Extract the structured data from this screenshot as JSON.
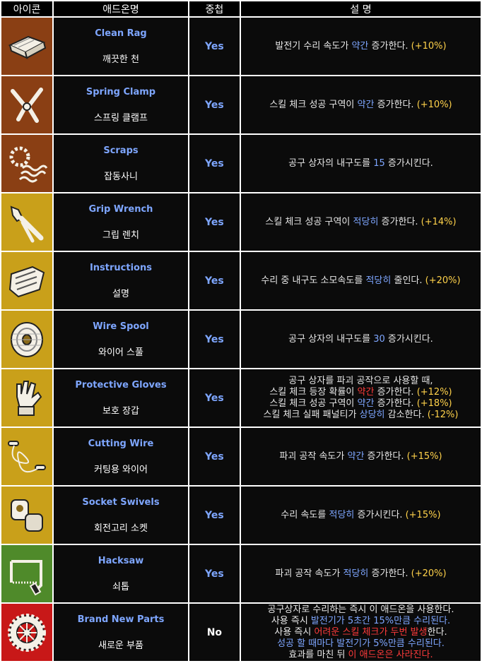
{
  "headers": [
    "아이콘",
    "애드온명",
    "중첩",
    "설 명"
  ],
  "colors": {
    "brown": "#8a3f14",
    "gold": "#c9a01a",
    "green": "#4f8a2a",
    "red": "#c81818",
    "blue_text": "#7ea6ff",
    "red_text": "#ff3b3b",
    "gold_text": "#ffd24a"
  },
  "rows": [
    {
      "icon": "clean-rag-icon",
      "bg": "brown",
      "en": "Clean Rag",
      "ko": "깨끗한 천",
      "stack": "Yes",
      "lines": [
        [
          [
            "text",
            "발전기 수리 속도가 "
          ],
          [
            "blue",
            "약간"
          ],
          [
            "text",
            " 증가한다. "
          ],
          [
            "gold",
            "(+10%)"
          ]
        ]
      ]
    },
    {
      "icon": "spring-clamp-icon",
      "bg": "brown",
      "en": "Spring Clamp",
      "ko": "스프링 클램프",
      "stack": "Yes",
      "lines": [
        [
          [
            "text",
            "스킬 체크 성공 구역이 "
          ],
          [
            "blue",
            "약간"
          ],
          [
            "text",
            " 증가한다. "
          ],
          [
            "gold",
            "(+10%)"
          ]
        ]
      ]
    },
    {
      "icon": "scraps-icon",
      "bg": "brown",
      "en": "Scraps",
      "ko": "잡동사니",
      "stack": "Yes",
      "lines": [
        [
          [
            "text",
            "공구 상자의 내구도를 "
          ],
          [
            "blue",
            "15"
          ],
          [
            "text",
            " 증가시킨다."
          ]
        ]
      ]
    },
    {
      "icon": "grip-wrench-icon",
      "bg": "gold",
      "en": "Grip Wrench",
      "ko": "그립 렌치",
      "stack": "Yes",
      "lines": [
        [
          [
            "text",
            "스킬 체크 성공 구역이 "
          ],
          [
            "blue",
            "적당히"
          ],
          [
            "text",
            " 증가한다. "
          ],
          [
            "gold",
            "(+14%)"
          ]
        ]
      ]
    },
    {
      "icon": "instructions-icon",
      "bg": "gold",
      "en": "Instructions",
      "ko": "설명",
      "stack": "Yes",
      "lines": [
        [
          [
            "text",
            "수리 중 내구도 소모속도를 "
          ],
          [
            "blue",
            "적당히"
          ],
          [
            "text",
            " 줄인다. "
          ],
          [
            "gold",
            "(+20%)"
          ]
        ]
      ]
    },
    {
      "icon": "wire-spool-icon",
      "bg": "gold",
      "en": "Wire Spool",
      "ko": "와이어 스풀",
      "stack": "Yes",
      "lines": [
        [
          [
            "text",
            "공구 상자의 내구도를 "
          ],
          [
            "blue",
            "30"
          ],
          [
            "text",
            " 증가시킨다."
          ]
        ]
      ]
    },
    {
      "icon": "protective-gloves-icon",
      "bg": "gold",
      "en": "Protective Gloves",
      "ko": "보호 장갑",
      "stack": "Yes",
      "lines": [
        [
          [
            "text",
            "공구 상자를 파괴 공작으로 사용할 때,"
          ]
        ],
        [
          [
            "text",
            "스킬 체크 등장 확률이 "
          ],
          [
            "red",
            "약간"
          ],
          [
            "text",
            " 증가한다. "
          ],
          [
            "gold",
            "(+12%)"
          ]
        ],
        [
          [
            "text",
            "스킬 체크 성공 구역이 "
          ],
          [
            "blue",
            "약간"
          ],
          [
            "text",
            " 증가한다. "
          ],
          [
            "gold",
            "(+18%)"
          ]
        ],
        [
          [
            "text",
            "스킬 체크 실패 패널티가 "
          ],
          [
            "blue",
            "상당히"
          ],
          [
            "text",
            " 감소한다. "
          ],
          [
            "gold",
            "(-12%)"
          ]
        ]
      ]
    },
    {
      "icon": "cutting-wire-icon",
      "bg": "gold",
      "en": "Cutting Wire",
      "ko": "커팅용 와이어",
      "stack": "Yes",
      "lines": [
        [
          [
            "text",
            "파괴 공작 속도가 "
          ],
          [
            "blue",
            "약간"
          ],
          [
            "text",
            " 증가한다. "
          ],
          [
            "gold",
            "(+15%)"
          ]
        ]
      ]
    },
    {
      "icon": "socket-swivels-icon",
      "bg": "gold",
      "en": "Socket Swivels",
      "ko": "회전고리 소켓",
      "stack": "Yes",
      "lines": [
        [
          [
            "text",
            "수리 속도를 "
          ],
          [
            "blue",
            "적당히"
          ],
          [
            "text",
            " 증가시킨다. "
          ],
          [
            "gold",
            "(+15%)"
          ]
        ]
      ]
    },
    {
      "icon": "hacksaw-icon",
      "bg": "green",
      "en": "Hacksaw",
      "ko": "쇠톱",
      "stack": "Yes",
      "lines": [
        [
          [
            "text",
            "파괴 공작 속도가 "
          ],
          [
            "blue",
            "적당히"
          ],
          [
            "text",
            " 증가한다. "
          ],
          [
            "gold",
            "(+20%)"
          ]
        ]
      ]
    },
    {
      "icon": "brand-new-parts-icon",
      "bg": "red",
      "en": "Brand New Parts",
      "ko": "새로운 부품",
      "stack": "No",
      "lines": [
        [
          [
            "text",
            "공구상자로 수리하는 즉시 이 애드온을 사용한다."
          ]
        ],
        [
          [
            "text",
            "사용 즉시 "
          ],
          [
            "blue",
            "발전기가 5초간 15%만큼 수리된다."
          ]
        ],
        [
          [
            "text",
            "사용 즉시 "
          ],
          [
            "red",
            "어려운 스킬 체크가 두번 발생"
          ],
          [
            "text",
            "한다."
          ]
        ],
        [
          [
            "blue",
            "성공 할 때마다 발전기가 5%만큼 수리된다."
          ]
        ],
        [
          [
            "text",
            "효과를 마친 뒤 "
          ],
          [
            "red",
            "이 애드온은 사라진다."
          ]
        ]
      ]
    }
  ]
}
